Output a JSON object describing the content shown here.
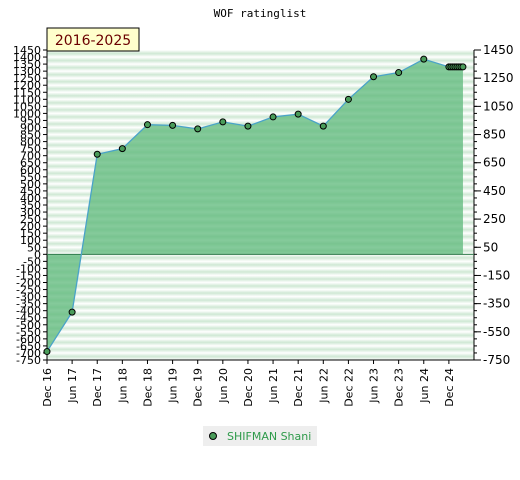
{
  "chart_data": {
    "type": "line",
    "title": "WOF ratinglist",
    "badge": "2016-2025",
    "x_tick_labels": [
      "Dec 16",
      "Jun 17",
      "Dec 17",
      "Jun 18",
      "Dec 18",
      "Jun 19",
      "Dec 19",
      "Jun 20",
      "Dec 20",
      "Jun 21",
      "Dec 21",
      "Jun 22",
      "Dec 22",
      "Jun 23",
      "Dec 23",
      "Jun 24",
      "Dec 24"
    ],
    "y_left_ticks": [
      1450,
      1400,
      1350,
      1300,
      1250,
      1200,
      1150,
      1100,
      1050,
      1000,
      950,
      900,
      850,
      800,
      750,
      700,
      650,
      600,
      550,
      500,
      450,
      400,
      350,
      300,
      250,
      200,
      150,
      100,
      50,
      0,
      -50,
      -100,
      -150,
      -200,
      -250,
      -300,
      -350,
      -400,
      -450,
      -500,
      -550,
      -600,
      -650,
      -700,
      -750
    ],
    "y_right_ticks": [
      1450,
      1250,
      1050,
      850,
      650,
      450,
      250,
      50,
      -150,
      -350,
      -550,
      -750
    ],
    "ylim": [
      -750,
      1450
    ],
    "grid": true,
    "legend_position": "bottom-center",
    "series": [
      {
        "name": "SHIFMAN Shani",
        "color": "#4aa3c8",
        "fill": "#5cb87a",
        "marker": "#4a9c5a",
        "x": [
          0,
          1,
          2,
          3,
          4,
          5,
          6,
          7,
          8,
          9,
          10,
          11,
          12,
          13,
          14,
          15,
          16,
          16.08,
          16.16,
          16.24,
          16.32,
          16.4,
          16.48,
          16.56
        ],
        "values": [
          -690,
          -410,
          710,
          750,
          920,
          915,
          890,
          940,
          910,
          975,
          995,
          910,
          1100,
          1260,
          1290,
          1385,
          1330,
          1330,
          1330,
          1330,
          1330,
          1330,
          1330,
          1330
        ]
      }
    ]
  }
}
